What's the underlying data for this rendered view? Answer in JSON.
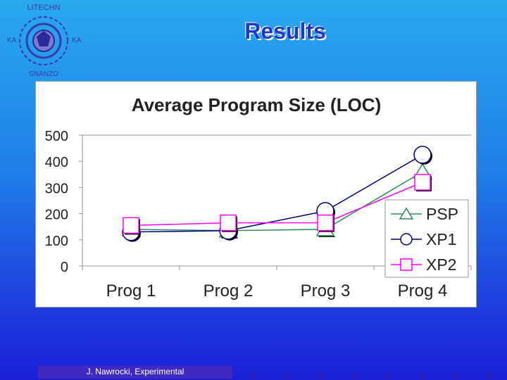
{
  "slide": {
    "title": "Results",
    "footer": "J. Nawrocki, Experimental",
    "logo_text": "POLITECHNIKA POZNAŃSKA"
  },
  "colors": {
    "background_top": "#29a9ef",
    "background_bottom": "#1a1fd8",
    "title": "#2038c8",
    "footer_bar": "#4028c0",
    "psp": "#2e8b57",
    "xp1": "#000080",
    "xp2": "#ff00ff"
  },
  "chart_data": {
    "type": "line",
    "title": "Average Program Size (LOC)",
    "categories": [
      "Prog 1",
      "Prog 2",
      "Prog 3",
      "Prog 4"
    ],
    "ylim": [
      0,
      500
    ],
    "yticks": [
      0,
      100,
      200,
      300,
      400,
      500
    ],
    "grid": false,
    "legend_position": "right",
    "series": [
      {
        "name": "PSP",
        "marker": "triangle",
        "color": "#2e8b57",
        "values": [
          140,
          135,
          140,
          360
        ]
      },
      {
        "name": "XP1",
        "marker": "circle",
        "color": "#000080",
        "values": [
          130,
          135,
          210,
          425
        ]
      },
      {
        "name": "XP2",
        "marker": "square",
        "color": "#ff00ff",
        "values": [
          155,
          165,
          165,
          320
        ]
      }
    ]
  }
}
